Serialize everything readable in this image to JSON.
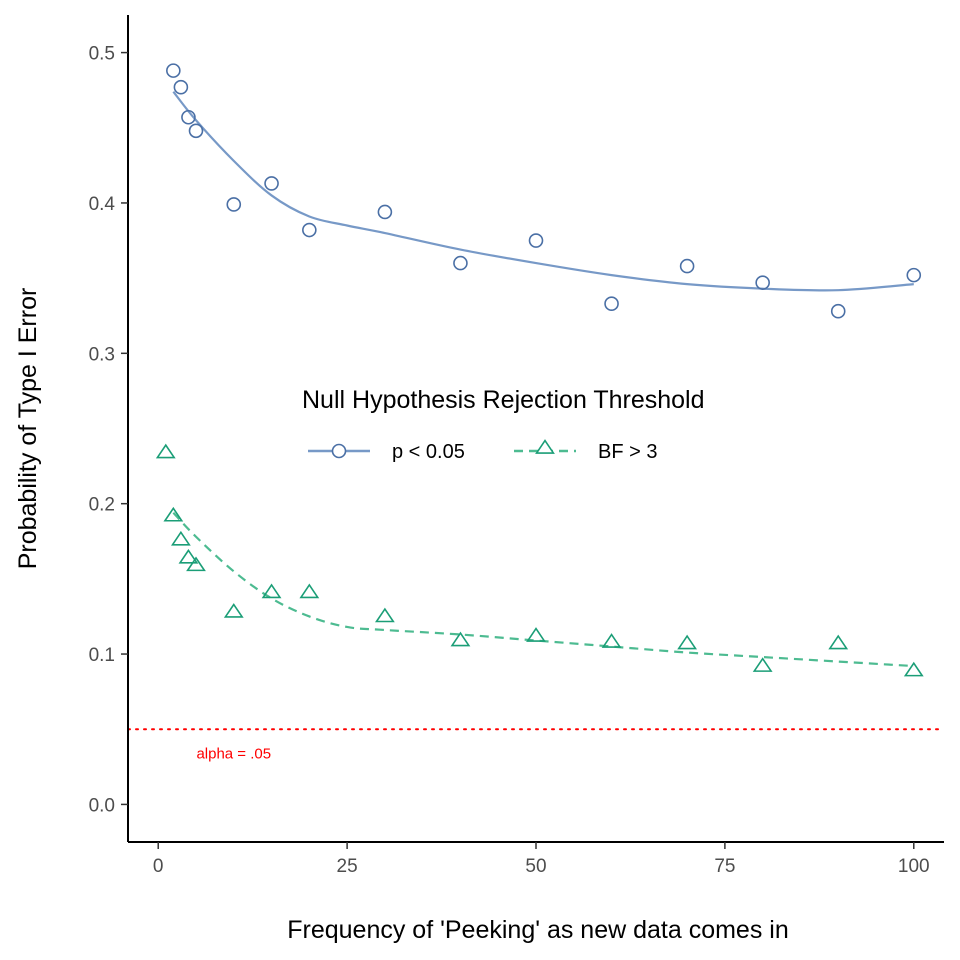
{
  "chart_data": {
    "type": "scatter",
    "xlabel": "Frequency of 'Peeking' as new data comes in",
    "ylabel": "Probability of Type I Error",
    "xlim": [
      -4,
      104
    ],
    "ylim": [
      -0.025,
      0.525
    ],
    "x_ticks": [
      0,
      25,
      50,
      75,
      100
    ],
    "x_tick_labels": [
      "0",
      "25",
      "50",
      "75",
      "100"
    ],
    "y_ticks": [
      0.0,
      0.1,
      0.2,
      0.3,
      0.4,
      0.5
    ],
    "y_tick_labels": [
      "0.0",
      "0.1",
      "0.2",
      "0.3",
      "0.4",
      "0.5"
    ],
    "grid": false,
    "legend": {
      "title": "Null Hypothesis Rejection Threshold",
      "placement": "inside-center",
      "entries": [
        "p < 0.05",
        "BF > 3"
      ]
    },
    "series": [
      {
        "name": "p < 0.05",
        "marker": "circle",
        "line": "solid",
        "color": "#4a6fa5",
        "line_color": "#7799c7",
        "x": [
          2,
          3,
          4,
          5,
          10,
          15,
          20,
          30,
          40,
          50,
          60,
          70,
          80,
          90,
          100
        ],
        "y": [
          0.488,
          0.477,
          0.457,
          0.448,
          0.399,
          0.413,
          0.382,
          0.394,
          0.36,
          0.375,
          0.333,
          0.358,
          0.347,
          0.328,
          0.352
        ],
        "smooth_x": [
          2,
          5,
          10,
          15,
          20,
          25,
          30,
          40,
          50,
          60,
          70,
          80,
          90,
          100
        ],
        "smooth_y": [
          0.474,
          0.455,
          0.428,
          0.405,
          0.391,
          0.385,
          0.38,
          0.369,
          0.36,
          0.352,
          0.346,
          0.343,
          0.342,
          0.346
        ]
      },
      {
        "name": "BF > 3",
        "marker": "triangle",
        "line": "dashed",
        "color": "#1b9e77",
        "line_color": "#4dbb91",
        "x": [
          1,
          2,
          3,
          4,
          5,
          10,
          15,
          20,
          30,
          40,
          50,
          60,
          70,
          80,
          90,
          100
        ],
        "y": [
          0.234,
          0.192,
          0.176,
          0.164,
          0.159,
          0.128,
          0.141,
          0.141,
          0.125,
          0.109,
          0.112,
          0.108,
          0.107,
          0.092,
          0.107,
          0.089
        ],
        "smooth_x": [
          2,
          5,
          10,
          15,
          20,
          25,
          30,
          40,
          50,
          60,
          70,
          80,
          90,
          100
        ],
        "smooth_y": [
          0.194,
          0.178,
          0.155,
          0.137,
          0.125,
          0.118,
          0.116,
          0.113,
          0.109,
          0.105,
          0.101,
          0.098,
          0.095,
          0.092
        ]
      }
    ],
    "reference_line": {
      "y": 0.05,
      "style": "dotted",
      "color": "#ff0000",
      "label": "alpha = .05",
      "label_x": 10,
      "label_y": 0.034
    }
  }
}
